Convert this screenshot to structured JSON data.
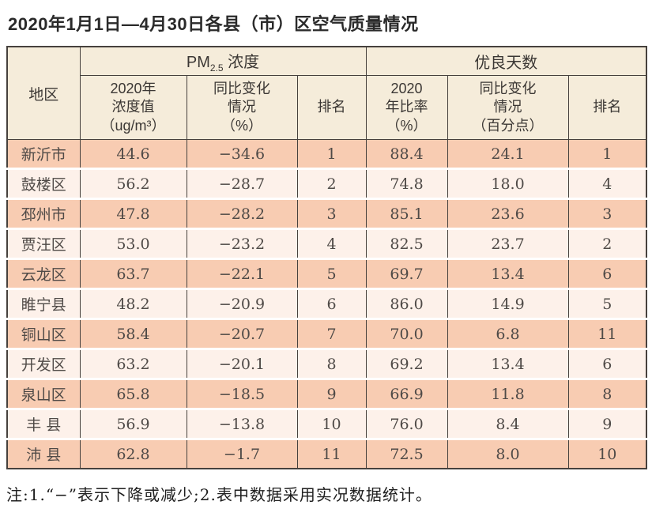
{
  "title": "2020年1月1日—4月30日各县（市）区空气质量情况",
  "footnote": "注:1.“−”表示下降或减少;2.表中数据采用实况数据统计。",
  "colors": {
    "row_dark": "#f8ccb2",
    "row_light": "#fdf1ea",
    "header_bg": "#f5ecda",
    "border": "#46413d"
  },
  "table": {
    "region_header": "地区",
    "pm_group": {
      "prefix": "PM",
      "sub": "2.5",
      "suffix": " 浓度"
    },
    "good_days_group": "优良天数",
    "subheaders": {
      "pm_value": [
        "2020年",
        "浓度值",
        "（ug/m³）"
      ],
      "pm_change": [
        "同比变化",
        "情况",
        "（%）"
      ],
      "pm_rank": "排名",
      "rate": [
        "2020",
        "年比率",
        "（%）"
      ],
      "rate_change": [
        "同比变化",
        "情况",
        "（百分点）"
      ],
      "rate_rank": "排名"
    },
    "rows": [
      {
        "region": "新沂市",
        "pm_value": "44.6",
        "pm_change": "−34.6",
        "pm_rank": "1",
        "rate": "88.4",
        "rate_change": "24.1",
        "rate_rank": "1"
      },
      {
        "region": "鼓楼区",
        "pm_value": "56.2",
        "pm_change": "−28.7",
        "pm_rank": "2",
        "rate": "74.8",
        "rate_change": "18.0",
        "rate_rank": "4"
      },
      {
        "region": "邳州市",
        "pm_value": "47.8",
        "pm_change": "−28.2",
        "pm_rank": "3",
        "rate": "85.1",
        "rate_change": "23.6",
        "rate_rank": "3"
      },
      {
        "region": "贾汪区",
        "pm_value": "53.0",
        "pm_change": "−23.2",
        "pm_rank": "4",
        "rate": "82.5",
        "rate_change": "23.7",
        "rate_rank": "2"
      },
      {
        "region": "云龙区",
        "pm_value": "63.7",
        "pm_change": "−22.1",
        "pm_rank": "5",
        "rate": "69.7",
        "rate_change": "13.4",
        "rate_rank": "6"
      },
      {
        "region": "睢宁县",
        "pm_value": "48.2",
        "pm_change": "−20.9",
        "pm_rank": "6",
        "rate": "86.0",
        "rate_change": "14.9",
        "rate_rank": "5"
      },
      {
        "region": "铜山区",
        "pm_value": "58.4",
        "pm_change": "−20.7",
        "pm_rank": "7",
        "rate": "70.0",
        "rate_change": "6.8",
        "rate_rank": "11"
      },
      {
        "region": "开发区",
        "pm_value": "63.2",
        "pm_change": "−20.1",
        "pm_rank": "8",
        "rate": "69.2",
        "rate_change": "13.4",
        "rate_rank": "6"
      },
      {
        "region": "泉山区",
        "pm_value": "65.8",
        "pm_change": "−18.5",
        "pm_rank": "9",
        "rate": "66.9",
        "rate_change": "11.8",
        "rate_rank": "8"
      },
      {
        "region": "丰 县",
        "pm_value": "56.9",
        "pm_change": "−13.8",
        "pm_rank": "10",
        "rate": "76.0",
        "rate_change": "8.4",
        "rate_rank": "9"
      },
      {
        "region": "沛 县",
        "pm_value": "62.8",
        "pm_change": "−1.7",
        "pm_rank": "11",
        "rate": "72.5",
        "rate_change": "8.0",
        "rate_rank": "10"
      }
    ]
  }
}
